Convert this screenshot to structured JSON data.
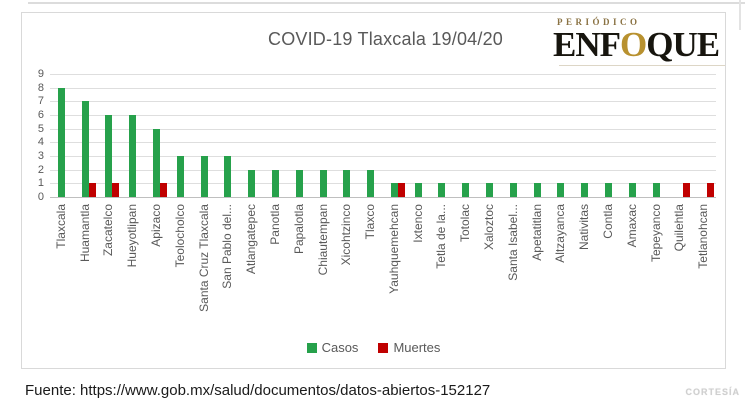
{
  "chart_data": {
    "type": "bar",
    "title": "COVID-19 Tlaxcala 19/04/20",
    "categories": [
      "Tlaxcala",
      "Huamantla",
      "Zacatelco",
      "Hueyotlipan",
      "Apizaco",
      "Teolocholco",
      "Santa Cruz Tlaxcala",
      "San Pablo del...",
      "Atlangatepec",
      "Panotla",
      "Papalotla",
      "Chiautempan",
      "Xicohtzinco",
      "Tlaxco",
      "Yauhquemehcan",
      "Ixtenco",
      "Tetla de la...",
      "Totolac",
      "Xaloztoc",
      "Santa Isabel...",
      "Apetatitlan",
      "Altzayanca",
      "Nativitas",
      "Contla",
      "Amaxac",
      "Tepeyanco",
      "Quilehtla",
      "Tetlanohcan"
    ],
    "series": [
      {
        "name": "Casos",
        "color": "#26a14b",
        "values": [
          8,
          7,
          6,
          6,
          5,
          3,
          3,
          3,
          2,
          2,
          2,
          2,
          2,
          2,
          1,
          1,
          1,
          1,
          1,
          1,
          1,
          1,
          1,
          1,
          1,
          1,
          0,
          0
        ]
      },
      {
        "name": "Muertes",
        "color": "#c00000",
        "values": [
          0,
          1,
          1,
          0,
          1,
          0,
          0,
          0,
          0,
          0,
          0,
          0,
          0,
          0,
          1,
          0,
          0,
          0,
          0,
          0,
          0,
          0,
          0,
          0,
          0,
          0,
          1,
          1
        ]
      }
    ],
    "ylim": [
      0,
      9
    ],
    "yticks": [
      0,
      1,
      2,
      3,
      4,
      5,
      6,
      7,
      8,
      9
    ],
    "grid": true,
    "legend_position": "bottom-center",
    "xlabel": "",
    "ylabel": ""
  },
  "logo": {
    "kicker": "PERIÓDICO",
    "name_part1": "ENF",
    "name_accent": "O",
    "name_part2": "QUE",
    "accent_color": "#b8912f"
  },
  "footer": {
    "source": "Fuente: https://www.gob.mx/salud/documentos/datos-abiertos-152127",
    "watermark": "CORTESÍA"
  }
}
